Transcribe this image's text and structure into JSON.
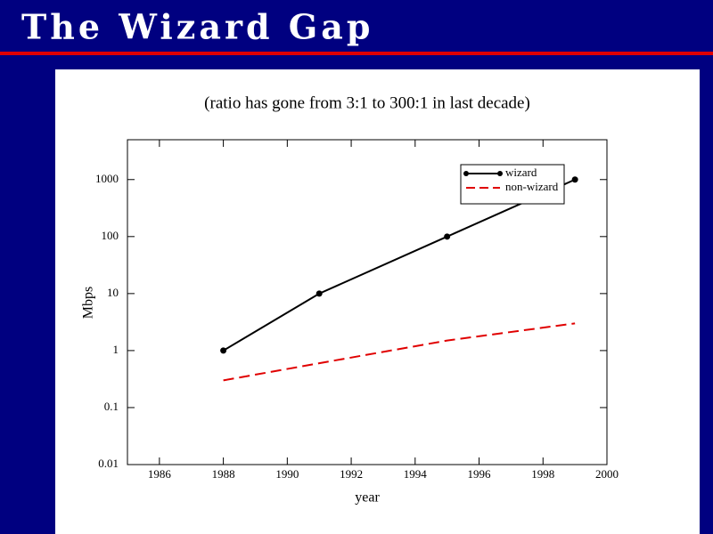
{
  "slide_title": "The Wizard Gap",
  "chart_data": {
    "type": "line",
    "title": "(ratio has gone from 3:1 to 300:1 in last decade)",
    "x_label": "year",
    "y_label": "Mbps",
    "x": [
      1988,
      1991,
      1995,
      1999
    ],
    "series": [
      {
        "name": "wizard",
        "color": "#000000",
        "dash": false,
        "markers": true,
        "values": [
          1,
          10,
          100,
          1000
        ]
      },
      {
        "name": "non-wizard",
        "color": "#e00000",
        "dash": true,
        "markers": false,
        "values": [
          0.3,
          0.6,
          1.5,
          3
        ]
      }
    ],
    "xlim": [
      1985,
      2000
    ],
    "xticks": [
      1986,
      1988,
      1990,
      1992,
      1994,
      1996,
      1998,
      2000
    ],
    "ylim": [
      0.01,
      5000
    ],
    "yticks": [
      0.01,
      0.1,
      1,
      10,
      100,
      1000
    ],
    "log_y": true,
    "grid": false,
    "legend": "upper right"
  }
}
